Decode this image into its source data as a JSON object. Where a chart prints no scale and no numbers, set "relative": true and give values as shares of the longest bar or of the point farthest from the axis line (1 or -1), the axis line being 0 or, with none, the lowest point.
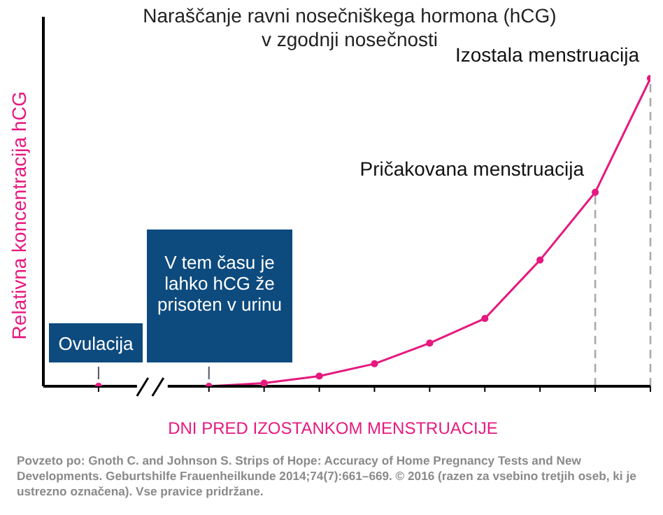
{
  "chart_data": {
    "type": "line",
    "title": "Naraščanje ravni nosečniškega hormona (hCG)\nv zgodnji nosečnosti",
    "xlabel": "DNI PRED IZOSTANKOM MENSTRUACIJE",
    "ylabel": "Relativna koncentracija hCG",
    "relative": true,
    "categories": [
      null,
      null,
      null,
      null,
      null,
      null,
      null,
      null,
      null,
      null,
      null
    ],
    "series": [
      {
        "color": "#e6197f",
        "values": [
          0,
          0,
          0,
          0.01,
          0.033,
          0.073,
          0.14,
          0.22,
          0.41,
          0.63,
          1
        ]
      }
    ],
    "marker": "circle",
    "line_style": "solid",
    "annotations": [
      "Ovulacija",
      "V tem času je lahko hCG že prisoten v urinu",
      "Povzeto po: Gnoth C. and Johnson S. Strips of Hope: Accuracy of Home Pregnancy Tests and New Developments. Geburtshilfe Frauenheilkunde 2014;74(7):661–669. © 2016 (razen za vsebino tretjih oseb, ki je ustrezno označena). Vse pravice pridržane.",
      "Pričakovana menstruacija",
      "Izostala menstruacija"
    ]
  }
}
